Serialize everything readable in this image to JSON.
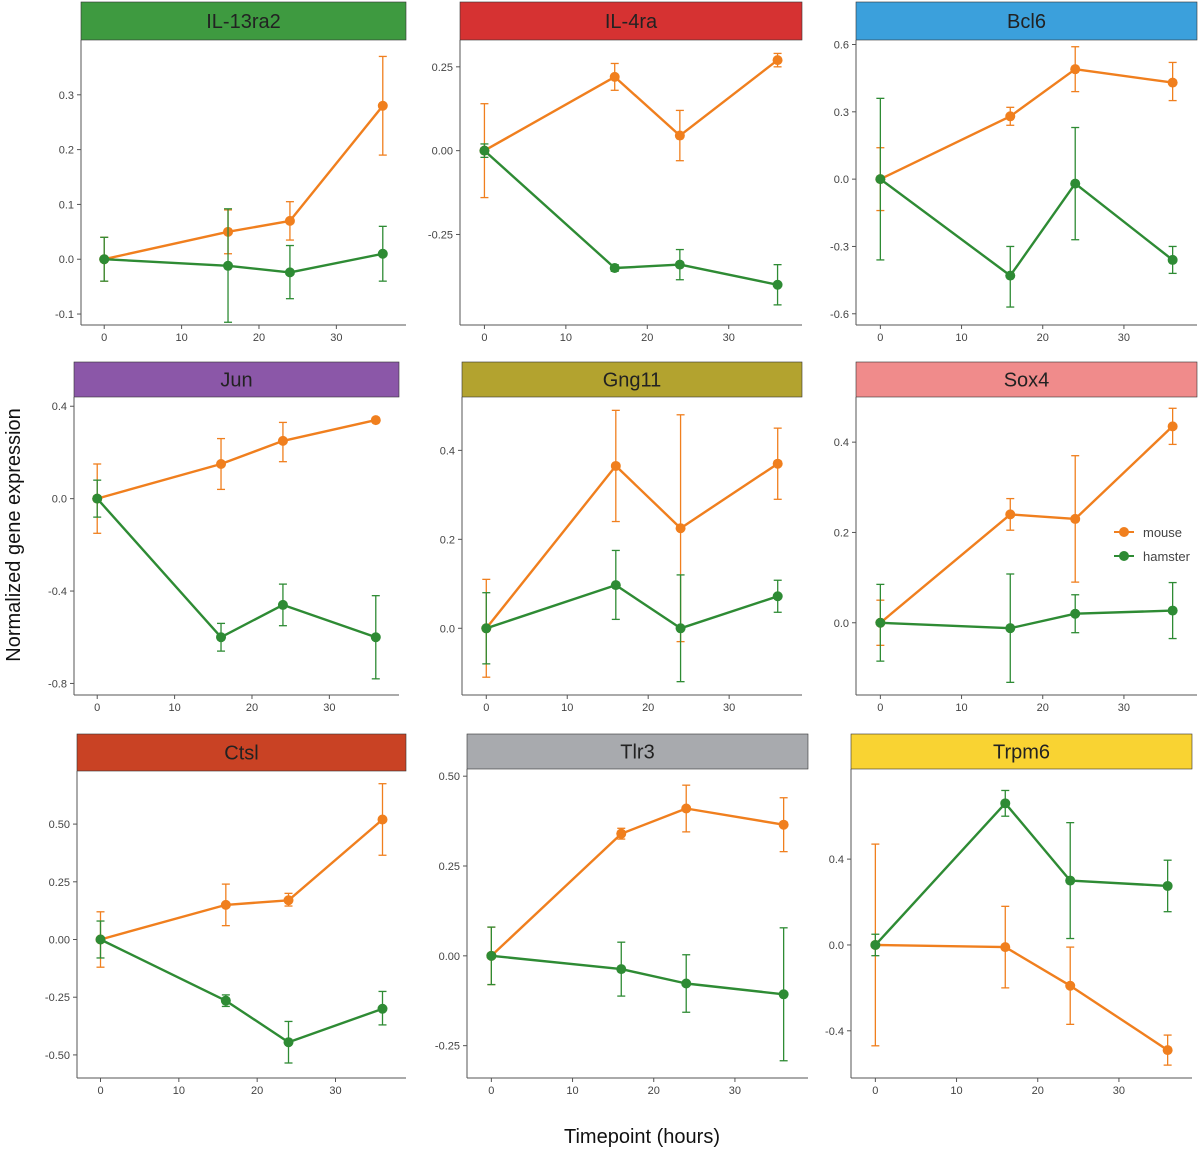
{
  "figure": {
    "ylabel": "Normalized gene expression",
    "xlabel": "Timepoint (hours)",
    "legend": {
      "placement": "right",
      "entries": [
        {
          "label": "mouse",
          "color": "#f07f1e"
        },
        {
          "label": "hamster",
          "color": "#2e8b34"
        }
      ]
    },
    "colors": {
      "mouse": "#f07f1e",
      "hamster": "#2e8b34",
      "axis": "#555555"
    }
  },
  "chart_data": [
    {
      "type": "line",
      "title": "IL-13ra2",
      "strip_color": "#3e9a40",
      "xlim": [
        -3,
        39
      ],
      "ylim": [
        -0.12,
        0.4
      ],
      "xticks": [
        0,
        10,
        20,
        30
      ],
      "xtick_labels": [
        "0",
        "10",
        "20",
        "30"
      ],
      "yticks": [
        -0.1,
        0,
        0.1,
        0.2,
        0.3
      ],
      "ytick_labels": [
        "-0.1",
        "0.0",
        "0.1",
        "0.2",
        "0.3"
      ],
      "x": [
        0,
        16,
        24,
        36
      ],
      "series": [
        {
          "name": "mouse",
          "values": [
            0.0,
            0.05,
            0.07,
            0.28
          ],
          "lower": [
            -0.04,
            0.01,
            0.035,
            0.19
          ],
          "upper": [
            0.04,
            0.09,
            0.105,
            0.37
          ]
        },
        {
          "name": "hamster",
          "values": [
            0.0,
            -0.012,
            -0.024,
            0.01
          ],
          "lower": [
            -0.04,
            -0.115,
            -0.072,
            -0.04
          ],
          "upper": [
            0.04,
            0.092,
            0.025,
            0.06
          ]
        }
      ]
    },
    {
      "type": "line",
      "title": "IL-4ra",
      "strip_color": "#d63232",
      "xlim": [
        -3,
        39
      ],
      "ylim": [
        -0.52,
        0.33
      ],
      "xticks": [
        0,
        10,
        20,
        30
      ],
      "xtick_labels": [
        "0",
        "10",
        "20",
        "30"
      ],
      "yticks": [
        -0.25,
        0,
        0.25
      ],
      "ytick_labels": [
        "-0.25",
        "0.00",
        "0.25"
      ],
      "x": [
        0,
        16,
        24,
        36
      ],
      "series": [
        {
          "name": "mouse",
          "values": [
            0.0,
            0.22,
            0.045,
            0.27
          ],
          "lower": [
            -0.14,
            0.18,
            -0.03,
            0.25
          ],
          "upper": [
            0.14,
            0.26,
            0.12,
            0.29
          ]
        },
        {
          "name": "hamster",
          "values": [
            0.0,
            -0.35,
            -0.34,
            -0.4
          ],
          "lower": [
            -0.02,
            -0.36,
            -0.385,
            -0.46
          ],
          "upper": [
            0.02,
            -0.34,
            -0.295,
            -0.34
          ]
        }
      ]
    },
    {
      "type": "line",
      "title": "Bcl6",
      "strip_color": "#3ba0dc",
      "xlim": [
        -3,
        39
      ],
      "ylim": [
        -0.65,
        0.62
      ],
      "xticks": [
        0,
        10,
        20,
        30
      ],
      "xtick_labels": [
        "0",
        "10",
        "20",
        "30"
      ],
      "yticks": [
        -0.6,
        -0.3,
        0,
        0.3,
        0.6
      ],
      "ytick_labels": [
        "-0.6",
        "-0.3",
        "0.0",
        "0.3",
        "0.6"
      ],
      "x": [
        0,
        16,
        24,
        36
      ],
      "series": [
        {
          "name": "mouse",
          "values": [
            0.0,
            0.28,
            0.49,
            0.43
          ],
          "lower": [
            -0.14,
            0.24,
            0.39,
            0.35
          ],
          "upper": [
            0.14,
            0.32,
            0.59,
            0.52
          ]
        },
        {
          "name": "hamster",
          "values": [
            0.0,
            -0.43,
            -0.02,
            -0.36
          ],
          "lower": [
            -0.36,
            -0.57,
            -0.27,
            -0.42
          ],
          "upper": [
            0.36,
            -0.3,
            0.23,
            -0.3
          ]
        }
      ]
    },
    {
      "type": "line",
      "title": "Jun",
      "strip_color": "#8b57a8",
      "xlim": [
        -3,
        39
      ],
      "ylim": [
        -0.85,
        0.44
      ],
      "xticks": [
        0,
        10,
        20,
        30
      ],
      "xtick_labels": [
        "0",
        "10",
        "20",
        "30"
      ],
      "yticks": [
        -0.8,
        -0.4,
        0,
        0.4
      ],
      "ytick_labels": [
        "-0.8",
        "-0.4",
        "0.0",
        "0.4"
      ],
      "x": [
        0,
        16,
        24,
        36
      ],
      "series": [
        {
          "name": "mouse",
          "values": [
            0.0,
            0.15,
            0.25,
            0.34
          ],
          "lower": [
            -0.15,
            0.04,
            0.16,
            0.33
          ],
          "upper": [
            0.15,
            0.26,
            0.33,
            0.35
          ]
        },
        {
          "name": "hamster",
          "values": [
            0.0,
            -0.6,
            -0.46,
            -0.6
          ],
          "lower": [
            -0.08,
            -0.66,
            -0.55,
            -0.78
          ],
          "upper": [
            0.08,
            -0.54,
            -0.37,
            -0.42
          ]
        }
      ]
    },
    {
      "type": "line",
      "title": "Gng11",
      "strip_color": "#b3a32f",
      "xlim": [
        -3,
        39
      ],
      "ylim": [
        -0.15,
        0.52
      ],
      "xticks": [
        0,
        10,
        20,
        30
      ],
      "xtick_labels": [
        "0",
        "10",
        "20",
        "30"
      ],
      "yticks": [
        0,
        0.2,
        0.4
      ],
      "ytick_labels": [
        "0.0",
        "0.2",
        "0.4"
      ],
      "x": [
        0,
        16,
        24,
        36
      ],
      "series": [
        {
          "name": "mouse",
          "values": [
            0.0,
            0.365,
            0.225,
            0.37
          ],
          "lower": [
            -0.11,
            0.24,
            -0.03,
            0.29
          ],
          "upper": [
            0.11,
            0.49,
            0.48,
            0.45
          ]
        },
        {
          "name": "hamster",
          "values": [
            0.0,
            0.097,
            0.0,
            0.072
          ],
          "lower": [
            -0.08,
            0.02,
            -0.12,
            0.036
          ],
          "upper": [
            0.08,
            0.175,
            0.12,
            0.108
          ]
        }
      ]
    },
    {
      "type": "line",
      "title": "Sox4",
      "strip_color": "#f08b8b",
      "xlim": [
        -3,
        39
      ],
      "ylim": [
        -0.16,
        0.5
      ],
      "xticks": [
        0,
        10,
        20,
        30
      ],
      "xtick_labels": [
        "0",
        "10",
        "20",
        "30"
      ],
      "yticks": [
        0,
        0.2,
        0.4
      ],
      "ytick_labels": [
        "0.0",
        "0.2",
        "0.4"
      ],
      "x": [
        0,
        16,
        24,
        36
      ],
      "series": [
        {
          "name": "mouse",
          "values": [
            0.0,
            0.24,
            0.23,
            0.435
          ],
          "lower": [
            -0.05,
            0.205,
            0.09,
            0.395
          ],
          "upper": [
            0.05,
            0.275,
            0.37,
            0.475
          ]
        },
        {
          "name": "hamster",
          "values": [
            0.0,
            -0.012,
            0.02,
            0.027
          ],
          "lower": [
            -0.085,
            -0.132,
            -0.022,
            -0.035
          ],
          "upper": [
            0.085,
            0.108,
            0.062,
            0.089
          ]
        }
      ]
    },
    {
      "type": "line",
      "title": "Ctsl",
      "strip_color": "#c94224",
      "xlim": [
        -3,
        39
      ],
      "ylim": [
        -0.6,
        0.73
      ],
      "xticks": [
        0,
        10,
        20,
        30
      ],
      "xtick_labels": [
        "0",
        "10",
        "20",
        "30"
      ],
      "yticks": [
        -0.5,
        -0.25,
        0,
        0.25,
        0.5
      ],
      "ytick_labels": [
        "-0.50",
        "-0.25",
        "0.00",
        "0.25",
        "0.50"
      ],
      "x": [
        0,
        16,
        24,
        36
      ],
      "series": [
        {
          "name": "mouse",
          "values": [
            0.0,
            0.15,
            0.17,
            0.52
          ],
          "lower": [
            -0.12,
            0.06,
            0.145,
            0.365
          ],
          "upper": [
            0.12,
            0.24,
            0.2,
            0.675
          ]
        },
        {
          "name": "hamster",
          "values": [
            0.0,
            -0.265,
            -0.445,
            -0.3
          ],
          "lower": [
            -0.08,
            -0.29,
            -0.535,
            -0.37
          ],
          "upper": [
            0.08,
            -0.24,
            -0.355,
            -0.225
          ]
        }
      ]
    },
    {
      "type": "line",
      "title": "Tlr3",
      "strip_color": "#a8aaae",
      "xlim": [
        -3,
        39
      ],
      "ylim": [
        -0.34,
        0.52
      ],
      "xticks": [
        0,
        10,
        20,
        30
      ],
      "xtick_labels": [
        "0",
        "10",
        "20",
        "30"
      ],
      "yticks": [
        -0.25,
        0,
        0.25,
        0.5
      ],
      "ytick_labels": [
        "-0.25",
        "0.00",
        "0.25",
        "0.50"
      ],
      "x": [
        0,
        16,
        24,
        36
      ],
      "series": [
        {
          "name": "mouse",
          "values": [
            0.0,
            0.34,
            0.41,
            0.365
          ],
          "lower": [
            -0.08,
            0.325,
            0.345,
            0.29
          ],
          "upper": [
            0.08,
            0.355,
            0.475,
            0.44
          ]
        },
        {
          "name": "hamster",
          "values": [
            0.0,
            -0.037,
            -0.077,
            -0.107
          ],
          "lower": [
            -0.08,
            -0.112,
            -0.157,
            -0.292
          ],
          "upper": [
            0.08,
            0.038,
            0.003,
            0.078
          ]
        }
      ]
    },
    {
      "type": "line",
      "title": "Trpm6",
      "strip_color": "#f9d332",
      "xlim": [
        -3,
        39
      ],
      "ylim": [
        -0.62,
        0.82
      ],
      "xticks": [
        0,
        10,
        20,
        30
      ],
      "xtick_labels": [
        "0",
        "10",
        "20",
        "30"
      ],
      "yticks": [
        -0.4,
        0,
        0.4
      ],
      "ytick_labels": [
        "-0.4",
        "0.0",
        "0.4"
      ],
      "x": [
        0,
        16,
        24,
        36
      ],
      "series": [
        {
          "name": "mouse",
          "values": [
            0.0,
            -0.01,
            -0.19,
            -0.49
          ],
          "lower": [
            -0.47,
            -0.2,
            -0.37,
            -0.56
          ],
          "upper": [
            0.47,
            0.18,
            -0.01,
            -0.42
          ]
        },
        {
          "name": "hamster",
          "values": [
            0.0,
            0.66,
            0.3,
            0.275
          ],
          "lower": [
            -0.05,
            0.6,
            0.03,
            0.155
          ],
          "upper": [
            0.05,
            0.72,
            0.57,
            0.395
          ]
        }
      ]
    }
  ]
}
